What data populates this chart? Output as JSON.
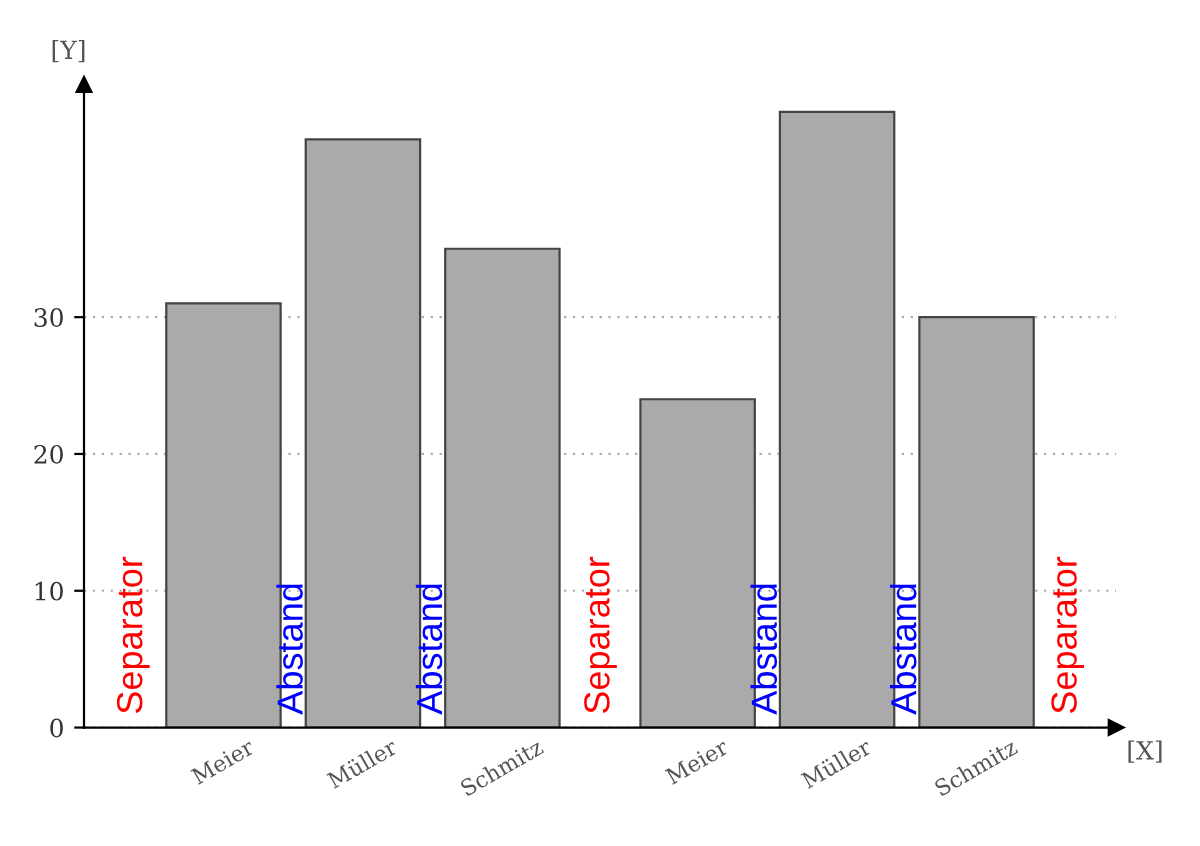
{
  "chart_data": {
    "type": "bar",
    "categories": [
      "Meier",
      "Müller",
      "Schmitz",
      "Meier",
      "Müller",
      "Schmitz"
    ],
    "values": [
      31,
      43,
      35,
      24,
      45,
      30
    ],
    "color": "#aaaaaa",
    "xlabel": "[X]",
    "ylabel": "[Y]",
    "ylim": [
      0,
      47
    ],
    "yticks": [
      0,
      10,
      20,
      30
    ],
    "grid": "y",
    "annotations": [
      "Separator",
      "Abstand",
      "Abstand",
      "Separator",
      "Abstand",
      "Abstand",
      "Separator"
    ]
  }
}
